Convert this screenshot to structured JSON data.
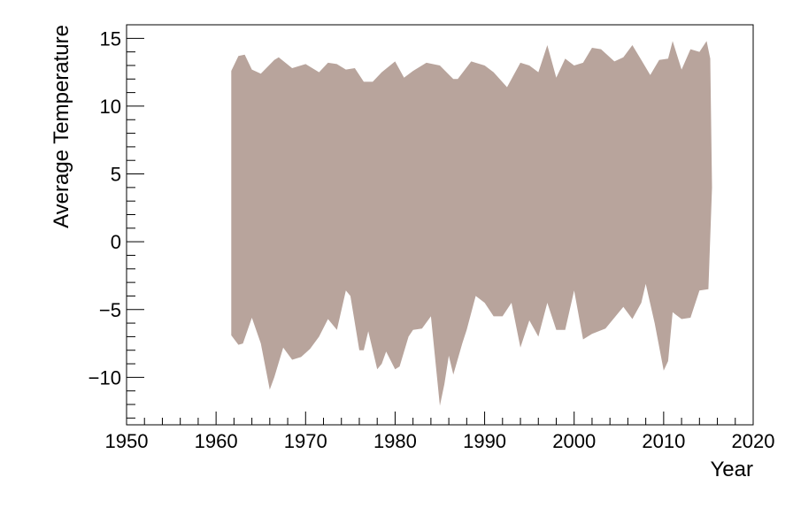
{
  "chart_data": {
    "type": "area",
    "title": "",
    "xlabel": "Year",
    "ylabel": "Average Temperature",
    "xlim": [
      1950,
      2020
    ],
    "ylim": [
      -13.5,
      16
    ],
    "grid": false,
    "fill_color": "#b8a49c",
    "x_ticks": [
      1950,
      1960,
      1970,
      1980,
      1990,
      2000,
      2010,
      2020
    ],
    "y_ticks": [
      -10,
      -5,
      0,
      5,
      10,
      15
    ],
    "x_tick_labels": [
      "1950",
      "1960",
      "1970",
      "1980",
      "1990",
      "2000",
      "2010",
      "2020"
    ],
    "y_tick_labels": [
      "−10",
      "−5",
      "0",
      "5",
      "10",
      "15"
    ],
    "series": [
      {
        "values_max": [
          [
            1961.7,
            12.6
          ],
          [
            1962.5,
            13.7
          ],
          [
            1963.2,
            13.8
          ],
          [
            1964.0,
            12.7
          ],
          [
            1965.0,
            12.4
          ],
          [
            1966.5,
            13.4
          ],
          [
            1967.0,
            13.6
          ],
          [
            1968.5,
            12.8
          ],
          [
            1970.0,
            13.1
          ],
          [
            1971.5,
            12.5
          ],
          [
            1972.5,
            13.2
          ],
          [
            1973.5,
            13.1
          ],
          [
            1974.5,
            12.7
          ],
          [
            1975.5,
            12.8
          ],
          [
            1976.5,
            11.8
          ],
          [
            1977.5,
            11.8
          ],
          [
            1978.5,
            12.5
          ],
          [
            1980.0,
            13.3
          ],
          [
            1981.0,
            12.1
          ],
          [
            1982.0,
            12.6
          ],
          [
            1983.5,
            13.2
          ],
          [
            1985.0,
            13.0
          ],
          [
            1986.5,
            12.0
          ],
          [
            1987.0,
            12.0
          ],
          [
            1988.5,
            13.3
          ],
          [
            1990.0,
            13.0
          ],
          [
            1991.0,
            12.5
          ],
          [
            1992.5,
            11.4
          ],
          [
            1994.0,
            13.2
          ],
          [
            1995.0,
            13.0
          ],
          [
            1996.0,
            12.5
          ],
          [
            1997.0,
            14.5
          ],
          [
            1998.0,
            12.1
          ],
          [
            1999.0,
            13.5
          ],
          [
            2000.0,
            13.0
          ],
          [
            2001.0,
            13.2
          ],
          [
            2002.0,
            14.3
          ],
          [
            2003.0,
            14.2
          ],
          [
            2004.5,
            13.3
          ],
          [
            2005.5,
            13.6
          ],
          [
            2006.5,
            14.5
          ],
          [
            2007.5,
            13.4
          ],
          [
            2008.5,
            12.3
          ],
          [
            2009.5,
            13.4
          ],
          [
            2010.5,
            13.5
          ],
          [
            2011.0,
            14.8
          ],
          [
            2012.0,
            12.7
          ],
          [
            2013.0,
            14.2
          ],
          [
            2014.0,
            14.0
          ],
          [
            2014.8,
            14.8
          ],
          [
            2015.2,
            13.5
          ],
          [
            2015.4,
            4.0
          ]
        ],
        "values_min": [
          [
            1961.7,
            -6.9
          ],
          [
            1962.5,
            -7.6
          ],
          [
            1963.0,
            -7.5
          ],
          [
            1964.0,
            -5.6
          ],
          [
            1965.0,
            -7.5
          ],
          [
            1966.0,
            -10.9
          ],
          [
            1966.5,
            -10.0
          ],
          [
            1967.5,
            -7.8
          ],
          [
            1968.5,
            -8.7
          ],
          [
            1969.5,
            -8.5
          ],
          [
            1970.5,
            -7.9
          ],
          [
            1971.5,
            -7.0
          ],
          [
            1972.5,
            -5.7
          ],
          [
            1973.5,
            -6.5
          ],
          [
            1974.5,
            -3.6
          ],
          [
            1975.0,
            -4.0
          ],
          [
            1976.0,
            -8.0
          ],
          [
            1976.5,
            -8.0
          ],
          [
            1977.0,
            -6.6
          ],
          [
            1978.0,
            -9.4
          ],
          [
            1978.5,
            -9.0
          ],
          [
            1979.0,
            -8.1
          ],
          [
            1980.0,
            -9.4
          ],
          [
            1980.5,
            -9.2
          ],
          [
            1981.5,
            -7.0
          ],
          [
            1982.0,
            -6.5
          ],
          [
            1983.0,
            -6.4
          ],
          [
            1984.0,
            -5.5
          ],
          [
            1985.0,
            -12.1
          ],
          [
            1985.5,
            -10.5
          ],
          [
            1986.0,
            -8.4
          ],
          [
            1986.5,
            -9.8
          ],
          [
            1987.5,
            -7.5
          ],
          [
            1988.0,
            -6.5
          ],
          [
            1989.0,
            -4.0
          ],
          [
            1990.0,
            -4.5
          ],
          [
            1991.0,
            -5.5
          ],
          [
            1992.0,
            -5.5
          ],
          [
            1993.0,
            -4.5
          ],
          [
            1994.0,
            -7.8
          ],
          [
            1995.0,
            -5.8
          ],
          [
            1996.0,
            -7.0
          ],
          [
            1997.0,
            -4.5
          ],
          [
            1998.0,
            -6.5
          ],
          [
            1999.0,
            -6.5
          ],
          [
            2000.0,
            -3.6
          ],
          [
            2001.0,
            -7.2
          ],
          [
            2002.0,
            -6.8
          ],
          [
            2003.5,
            -6.4
          ],
          [
            2004.5,
            -5.6
          ],
          [
            2005.5,
            -4.8
          ],
          [
            2006.5,
            -5.7
          ],
          [
            2007.5,
            -4.5
          ],
          [
            2008.0,
            -3.1
          ],
          [
            2009.0,
            -6.0
          ],
          [
            2010.0,
            -9.5
          ],
          [
            2010.5,
            -8.8
          ],
          [
            2011.0,
            -5.2
          ],
          [
            2012.0,
            -5.7
          ],
          [
            2013.0,
            -5.6
          ],
          [
            2014.0,
            -3.6
          ],
          [
            2015.0,
            -3.5
          ],
          [
            2015.4,
            4.0
          ]
        ]
      }
    ]
  }
}
